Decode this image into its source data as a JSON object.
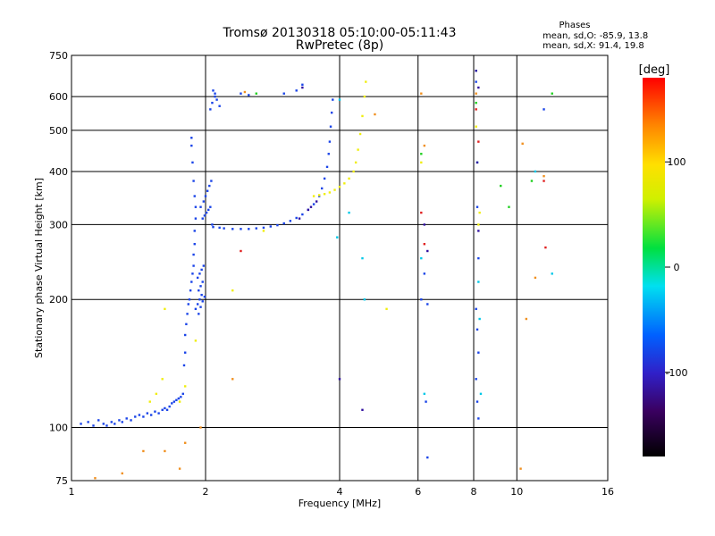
{
  "chart_data": {
    "type": "scatter",
    "title": "Tromsø 20130318 05:10:00-05:11:43",
    "subtitle": "RwPretec (8p)",
    "xlabel": "Frequency [MHz]",
    "ylabel": "Stationary phase Virtual Height [km]",
    "xscale": "log",
    "yscale": "log",
    "xlim": [
      1,
      16
    ],
    "ylim": [
      75,
      750
    ],
    "x_ticks": [
      1,
      2,
      4,
      6,
      8,
      10,
      16
    ],
    "x_tick_labels": [
      "1",
      "2",
      "4",
      "6",
      "8",
      "10",
      "16"
    ],
    "y_ticks": [
      75,
      100,
      200,
      300,
      400,
      500,
      600,
      750
    ],
    "y_tick_labels": [
      "75",
      "100",
      "200",
      "300",
      "400",
      "500",
      "600",
      "750"
    ],
    "grid": true,
    "phase_info": {
      "heading": "Phases",
      "line_o": "mean, sd,O: -85.9, 13.8",
      "line_x": "mean, sd,X:  91.4, 19.8"
    },
    "colorbar": {
      "label": "[deg]",
      "range": [
        -180,
        180
      ],
      "ticks": [
        100,
        0,
        -100
      ],
      "tick_labels": [
        "100",
        "0",
        "-100"
      ]
    },
    "series": [
      {
        "color": "#1a44e8",
        "points": [
          [
            1.05,
            102
          ],
          [
            1.09,
            103
          ],
          [
            1.12,
            101
          ],
          [
            1.15,
            104
          ],
          [
            1.18,
            102
          ],
          [
            1.2,
            101
          ],
          [
            1.23,
            103
          ],
          [
            1.25,
            102
          ],
          [
            1.28,
            104
          ],
          [
            1.3,
            103
          ],
          [
            1.33,
            105
          ],
          [
            1.36,
            104
          ],
          [
            1.39,
            106
          ],
          [
            1.42,
            107
          ],
          [
            1.45,
            106
          ],
          [
            1.48,
            108
          ],
          [
            1.51,
            107
          ],
          [
            1.54,
            109
          ],
          [
            1.57,
            108
          ],
          [
            1.6,
            110
          ],
          [
            1.62,
            111
          ],
          [
            1.64,
            110
          ],
          [
            1.66,
            112
          ],
          [
            1.68,
            114
          ],
          [
            1.7,
            115
          ],
          [
            1.72,
            116
          ],
          [
            1.74,
            117
          ],
          [
            1.76,
            118
          ],
          [
            1.78,
            120
          ],
          [
            1.79,
            140
          ],
          [
            1.8,
            150
          ],
          [
            1.8,
            165
          ],
          [
            1.81,
            175
          ],
          [
            1.82,
            185
          ],
          [
            1.83,
            195
          ],
          [
            1.84,
            200
          ],
          [
            1.85,
            210
          ],
          [
            1.86,
            220
          ],
          [
            1.87,
            230
          ],
          [
            1.88,
            240
          ],
          [
            1.88,
            255
          ],
          [
            1.89,
            270
          ],
          [
            1.89,
            290
          ],
          [
            1.9,
            310
          ],
          [
            1.9,
            330
          ],
          [
            1.89,
            350
          ],
          [
            1.88,
            380
          ],
          [
            1.87,
            420
          ],
          [
            1.86,
            460
          ],
          [
            1.86,
            480
          ],
          [
            1.9,
            190
          ],
          [
            1.92,
            195
          ],
          [
            1.94,
            200
          ],
          [
            1.96,
            205
          ],
          [
            1.93,
            210
          ],
          [
            1.95,
            215
          ],
          [
            1.97,
            220
          ],
          [
            1.92,
            225
          ],
          [
            1.94,
            230
          ],
          [
            1.96,
            235
          ],
          [
            1.98,
            240
          ],
          [
            1.93,
            185
          ],
          [
            1.95,
            192
          ],
          [
            1.97,
            198
          ],
          [
            1.99,
            203
          ],
          [
            1.95,
            330
          ],
          [
            1.98,
            340
          ],
          [
            2.0,
            350
          ],
          [
            2.02,
            360
          ],
          [
            2.04,
            370
          ],
          [
            2.06,
            380
          ],
          [
            1.97,
            310
          ],
          [
            1.99,
            315
          ],
          [
            2.01,
            320
          ],
          [
            2.03,
            325
          ],
          [
            2.05,
            330
          ],
          [
            2.07,
            300
          ],
          [
            2.08,
            296
          ],
          [
            2.15,
            295
          ],
          [
            2.2,
            294
          ],
          [
            2.3,
            293
          ],
          [
            2.4,
            293
          ],
          [
            2.5,
            293
          ],
          [
            2.6,
            294
          ],
          [
            2.7,
            295
          ],
          [
            2.8,
            297
          ],
          [
            2.9,
            299
          ],
          [
            3.0,
            302
          ],
          [
            3.1,
            306
          ],
          [
            3.2,
            311
          ],
          [
            3.3,
            317
          ],
          [
            3.4,
            325
          ],
          [
            3.5,
            335
          ],
          [
            3.6,
            350
          ],
          [
            3.65,
            365
          ],
          [
            3.7,
            385
          ],
          [
            3.75,
            410
          ],
          [
            3.78,
            440
          ],
          [
            3.8,
            470
          ],
          [
            3.82,
            510
          ],
          [
            3.84,
            550
          ],
          [
            3.86,
            590
          ],
          [
            2.05,
            560
          ],
          [
            2.07,
            580
          ],
          [
            2.1,
            600
          ],
          [
            2.12,
            590
          ],
          [
            2.15,
            570
          ],
          [
            2.08,
            620
          ],
          [
            2.1,
            610
          ],
          [
            2.4,
            610
          ],
          [
            2.5,
            605
          ],
          [
            3.0,
            610
          ],
          [
            3.2,
            620
          ],
          [
            3.3,
            640
          ],
          [
            6.1,
            200
          ],
          [
            6.2,
            230
          ],
          [
            6.3,
            195
          ],
          [
            6.25,
            115
          ],
          [
            6.3,
            85
          ],
          [
            8.1,
            650
          ],
          [
            8.15,
            330
          ],
          [
            8.2,
            250
          ],
          [
            8.1,
            190
          ],
          [
            8.15,
            170
          ],
          [
            8.2,
            150
          ],
          [
            8.1,
            130
          ],
          [
            8.15,
            115
          ],
          [
            8.2,
            105
          ],
          [
            11.5,
            560
          ]
        ]
      },
      {
        "color": "#f0ee10",
        "points": [
          [
            3.5,
            350
          ],
          [
            3.6,
            352
          ],
          [
            3.7,
            354
          ],
          [
            3.8,
            357
          ],
          [
            3.9,
            362
          ],
          [
            4.0,
            368
          ],
          [
            4.1,
            375
          ],
          [
            4.2,
            385
          ],
          [
            4.3,
            400
          ],
          [
            4.35,
            420
          ],
          [
            4.4,
            450
          ],
          [
            4.45,
            490
          ],
          [
            4.5,
            540
          ],
          [
            4.55,
            600
          ],
          [
            4.58,
            650
          ],
          [
            1.5,
            115
          ],
          [
            1.55,
            120
          ],
          [
            1.6,
            130
          ],
          [
            1.62,
            190
          ],
          [
            1.75,
            115
          ],
          [
            1.8,
            125
          ],
          [
            1.9,
            160
          ],
          [
            2.3,
            210
          ],
          [
            2.7,
            290
          ],
          [
            5.1,
            190
          ],
          [
            6.1,
            420
          ],
          [
            8.1,
            510
          ],
          [
            8.2,
            300
          ],
          [
            8.25,
            320
          ]
        ]
      },
      {
        "color": "#f09020",
        "points": [
          [
            1.13,
            76
          ],
          [
            1.3,
            78
          ],
          [
            1.45,
            88
          ],
          [
            1.62,
            88
          ],
          [
            1.75,
            80
          ],
          [
            1.8,
            92
          ],
          [
            1.95,
            100
          ],
          [
            2.3,
            130
          ],
          [
            2.45,
            615
          ],
          [
            4.8,
            545
          ],
          [
            6.1,
            610
          ],
          [
            6.2,
            460
          ],
          [
            8.1,
            610
          ],
          [
            10.2,
            80
          ],
          [
            10.5,
            180
          ],
          [
            11.0,
            225
          ],
          [
            11.5,
            390
          ],
          [
            10.3,
            465
          ]
        ]
      },
      {
        "color": "#e02020",
        "points": [
          [
            2.4,
            260
          ],
          [
            6.2,
            270
          ],
          [
            6.1,
            320
          ],
          [
            8.1,
            560
          ],
          [
            8.2,
            470
          ],
          [
            11.5,
            380
          ],
          [
            11.6,
            265
          ]
        ]
      },
      {
        "color": "#20d020",
        "points": [
          [
            2.6,
            610
          ],
          [
            6.1,
            440
          ],
          [
            8.1,
            580
          ],
          [
            9.2,
            370
          ],
          [
            9.6,
            330
          ],
          [
            10.8,
            380
          ],
          [
            12.0,
            610
          ]
        ]
      },
      {
        "color": "#00c8e8",
        "points": [
          [
            3.95,
            280
          ],
          [
            4.0,
            590
          ],
          [
            4.2,
            320
          ],
          [
            4.5,
            250
          ],
          [
            4.55,
            200
          ],
          [
            6.1,
            250
          ],
          [
            6.2,
            120
          ],
          [
            8.1,
            690
          ],
          [
            8.15,
            420
          ],
          [
            8.2,
            220
          ],
          [
            8.25,
            180
          ],
          [
            8.3,
            120
          ],
          [
            11.0,
            400
          ],
          [
            12.0,
            230
          ]
        ]
      },
      {
        "color": "#3010a0",
        "points": [
          [
            3.25,
            310
          ],
          [
            3.4,
            325
          ],
          [
            3.45,
            330
          ],
          [
            3.55,
            340
          ],
          [
            3.3,
            630
          ],
          [
            4.0,
            130
          ],
          [
            4.5,
            110
          ],
          [
            6.2,
            300
          ],
          [
            6.3,
            260
          ],
          [
            8.1,
            690
          ],
          [
            8.2,
            630
          ],
          [
            8.15,
            420
          ],
          [
            8.2,
            290
          ]
        ]
      }
    ]
  }
}
